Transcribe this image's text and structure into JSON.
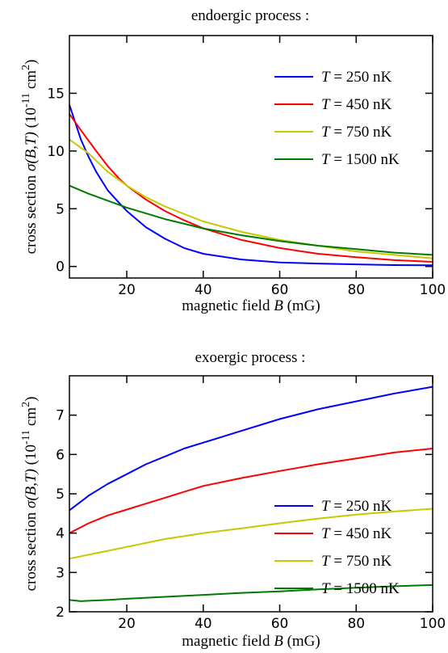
{
  "chart_data": [
    {
      "type": "line",
      "title": "endoergic process :",
      "xlabel": "magnetic field B (mG)",
      "ylabel": "cross section σ(B,T) (10^-11 cm^2)",
      "xlim": [
        5,
        100
      ],
      "ylim": [
        -1,
        20
      ],
      "xticks": [
        20,
        40,
        60,
        80,
        100
      ],
      "yticks": [
        0,
        5,
        10,
        15
      ],
      "grid": false,
      "legend_position": "top-right",
      "series": [
        {
          "name": "T = 250 nK",
          "legend_T": "T",
          "legend_value": " = 250 nK",
          "color": "#0000ff",
          "x": [
            5,
            8,
            10,
            12,
            15,
            18,
            20,
            25,
            30,
            35,
            40,
            50,
            60,
            70,
            80,
            90,
            100
          ],
          "y": [
            14.0,
            11.0,
            9.5,
            8.2,
            6.6,
            5.5,
            4.8,
            3.4,
            2.4,
            1.6,
            1.1,
            0.6,
            0.35,
            0.25,
            0.18,
            0.12,
            0.1
          ]
        },
        {
          "name": "T = 450 nK",
          "legend_T": "T",
          "legend_value": " = 450 nK",
          "color": "#ff0000",
          "x": [
            5,
            8,
            10,
            12,
            15,
            18,
            20,
            25,
            30,
            35,
            40,
            50,
            60,
            70,
            80,
            90,
            100
          ],
          "y": [
            13.2,
            11.8,
            10.9,
            10.0,
            8.7,
            7.6,
            7.0,
            5.8,
            4.8,
            4.0,
            3.3,
            2.3,
            1.6,
            1.1,
            0.8,
            0.55,
            0.4
          ]
        },
        {
          "name": "T = 750 nK",
          "legend_T": "T",
          "legend_value": " = 750 nK",
          "color": "#c8c800",
          "x": [
            5,
            10,
            15,
            20,
            25,
            30,
            40,
            50,
            60,
            70,
            80,
            90,
            100
          ],
          "y": [
            11.0,
            9.8,
            8.2,
            7.0,
            6.0,
            5.2,
            3.9,
            3.0,
            2.3,
            1.8,
            1.3,
            1.0,
            0.7
          ]
        },
        {
          "name": "T = 1500 nK",
          "legend_T": "T",
          "legend_value": " = 1500 nK",
          "color": "#007a00",
          "x": [
            5,
            10,
            15,
            20,
            30,
            40,
            50,
            60,
            70,
            80,
            90,
            100
          ],
          "y": [
            7.0,
            6.3,
            5.7,
            5.1,
            4.1,
            3.3,
            2.7,
            2.2,
            1.8,
            1.5,
            1.2,
            1.0
          ]
        }
      ]
    },
    {
      "type": "line",
      "title": "exoergic process :",
      "xlabel": "magnetic field B (mG)",
      "ylabel": "cross section σ(B,T) (10^-11 cm^2)",
      "xlim": [
        5,
        100
      ],
      "ylim": [
        2,
        8
      ],
      "xticks": [
        20,
        40,
        60,
        80,
        100
      ],
      "yticks": [
        2,
        3,
        4,
        5,
        6,
        7
      ],
      "grid": false,
      "legend_position": "lower-right",
      "series": [
        {
          "name": "T = 250 nK",
          "legend_T": "T",
          "legend_value": " = 250 nK",
          "color": "#0000ff",
          "x": [
            5,
            8,
            10,
            15,
            20,
            25,
            30,
            35,
            40,
            50,
            60,
            70,
            80,
            90,
            100
          ],
          "y": [
            4.58,
            4.8,
            4.95,
            5.25,
            5.5,
            5.75,
            5.95,
            6.15,
            6.3,
            6.6,
            6.9,
            7.15,
            7.35,
            7.55,
            7.72
          ]
        },
        {
          "name": "T = 450 nK",
          "legend_T": "T",
          "legend_value": " = 450 nK",
          "color": "#ff0000",
          "x": [
            5,
            10,
            15,
            20,
            25,
            30,
            35,
            40,
            50,
            60,
            70,
            80,
            90,
            100
          ],
          "y": [
            4.0,
            4.25,
            4.45,
            4.6,
            4.75,
            4.9,
            5.05,
            5.2,
            5.4,
            5.58,
            5.75,
            5.9,
            6.05,
            6.15
          ]
        },
        {
          "name": "T = 750 nK",
          "legend_T": "T",
          "legend_value": " = 750 nK",
          "color": "#c8c800",
          "x": [
            5,
            10,
            15,
            20,
            30,
            40,
            50,
            60,
            70,
            80,
            90,
            100
          ],
          "y": [
            3.35,
            3.45,
            3.55,
            3.65,
            3.85,
            4.0,
            4.12,
            4.25,
            4.37,
            4.47,
            4.55,
            4.62
          ]
        },
        {
          "name": "T = 1500 nK",
          "legend_T": "T",
          "legend_value": " = 1500 nK",
          "color": "#007a00",
          "x": [
            5,
            8,
            10,
            15,
            20,
            30,
            40,
            50,
            60,
            70,
            80,
            90,
            100
          ],
          "y": [
            2.3,
            2.27,
            2.28,
            2.3,
            2.33,
            2.38,
            2.43,
            2.48,
            2.52,
            2.57,
            2.61,
            2.65,
            2.68
          ]
        }
      ]
    }
  ]
}
